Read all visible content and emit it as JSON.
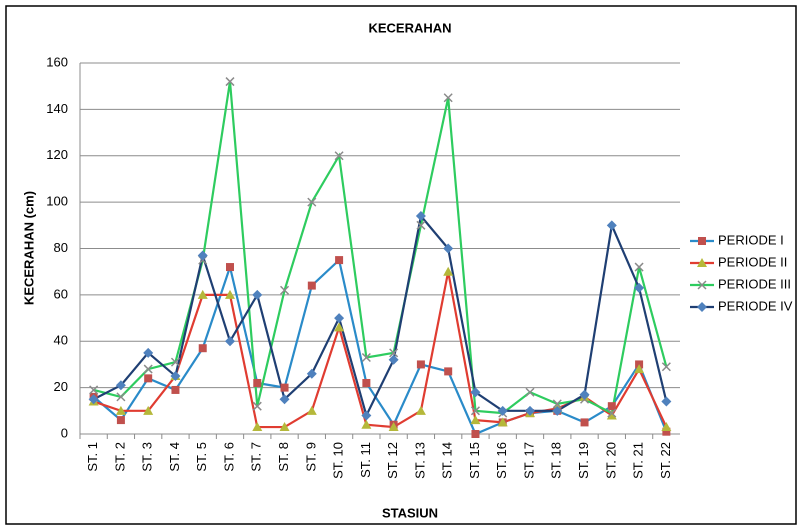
{
  "chart_data": {
    "type": "line",
    "title": "KECERAHAN",
    "x_label": "STASIUN",
    "y_label": "KECERAHAN (cm)",
    "categories": [
      "ST. 1",
      "ST. 2",
      "ST. 3",
      "ST. 4",
      "ST. 5",
      "ST. 6",
      "ST. 7",
      "ST. 8",
      "ST. 9",
      "ST. 10",
      "ST. 11",
      "ST. 12",
      "ST. 13",
      "ST. 14",
      "ST. 15",
      "ST. 16",
      "ST. 17",
      "ST. 18",
      "ST. 19",
      "ST. 20",
      "ST. 21",
      "ST. 22"
    ],
    "series": [
      {
        "name": "PERIODE I",
        "color": "#2a8bc9",
        "marker": "square",
        "marker_color": "#c0504d",
        "values": [
          16,
          6,
          24,
          19,
          37,
          72,
          22,
          20,
          64,
          75,
          22,
          4,
          30,
          27,
          0,
          5,
          9,
          10,
          5,
          12,
          30,
          1
        ]
      },
      {
        "name": "PERIODE II",
        "color": "#e03c31",
        "marker": "triangle",
        "marker_color": "#b5b83a",
        "values": [
          14,
          10,
          10,
          25,
          60,
          60,
          3,
          3,
          10,
          46,
          4,
          3,
          10,
          70,
          6,
          5,
          9,
          11,
          16,
          8,
          28,
          3
        ]
      },
      {
        "name": "PERIODE III",
        "color": "#2ecc5f",
        "marker": "x",
        "marker_color": "#8a8a8a",
        "values": [
          19,
          16,
          28,
          31,
          75,
          152,
          12,
          62,
          100,
          120,
          33,
          35,
          90,
          145,
          10,
          9,
          18,
          13,
          15,
          9,
          72,
          29
        ]
      },
      {
        "name": "PERIODE IV",
        "color": "#1f3f73",
        "marker": "diamond",
        "marker_color": "#4f81bd",
        "values": [
          15,
          21,
          35,
          25,
          77,
          40,
          60,
          15,
          26,
          50,
          8,
          32,
          94,
          80,
          18,
          10,
          10,
          10,
          17,
          90,
          63,
          14
        ]
      }
    ],
    "ylim": [
      0,
      160
    ],
    "yticks": [
      0,
      20,
      40,
      60,
      80,
      100,
      120,
      140,
      160
    ],
    "grid": true,
    "legend": "right"
  }
}
